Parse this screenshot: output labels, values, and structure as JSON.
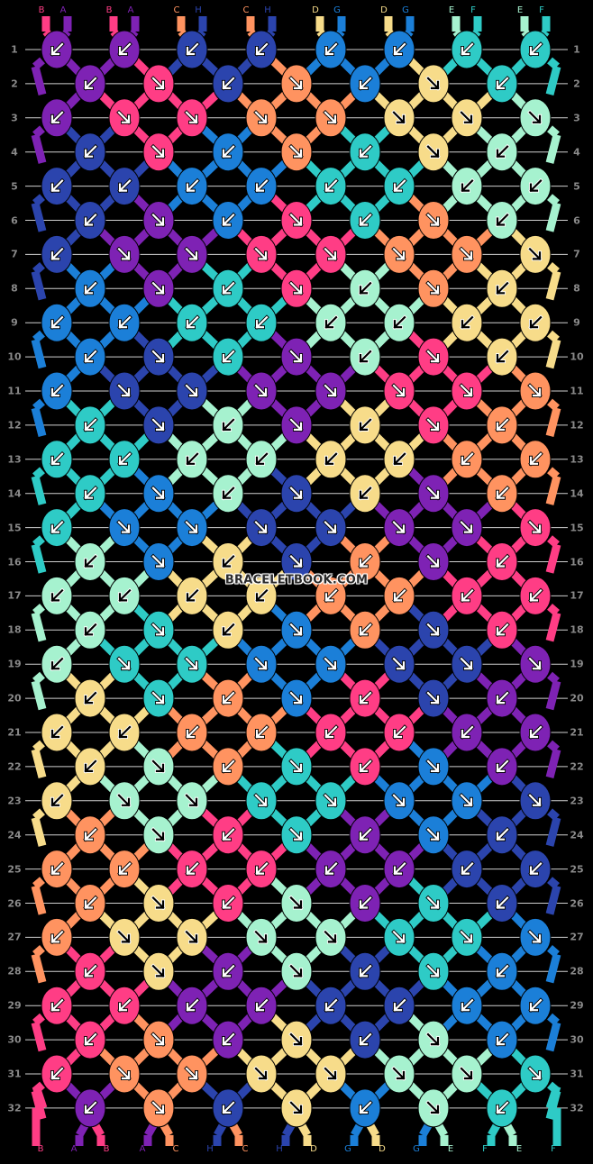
{
  "site": {
    "watermark": "BRACELETBOOK.COM"
  },
  "colors": {
    "A": "#7e22b4",
    "B": "#ff3d85",
    "C": "#ff9360",
    "D": "#f7dc8a",
    "E": "#a6f2cf",
    "F": "#2ecbc6",
    "G": "#1b7fd8",
    "H": "#2b44ad"
  },
  "strings_top": [
    "B",
    "A",
    "B",
    "A",
    "C",
    "H",
    "C",
    "H",
    "D",
    "G",
    "D",
    "G",
    "E",
    "F",
    "E",
    "F"
  ],
  "strings_bottom": [
    "B",
    "A",
    "B",
    "A",
    "C",
    "H",
    "C",
    "H",
    "D",
    "G",
    "D",
    "G",
    "E",
    "F",
    "E",
    "F"
  ],
  "row_count": 32,
  "rows": [
    [
      "AL",
      "AL",
      "HL",
      "HL",
      "GL",
      "GL",
      "FL",
      "FL"
    ],
    [
      "AL",
      "BR",
      "HL",
      "CR",
      "GL",
      "DR",
      "FL"
    ],
    [
      "AL",
      "BR",
      "BR",
      "CR",
      "CR",
      "DR",
      "DR",
      "ER"
    ],
    [
      "HL",
      "BR",
      "GL",
      "CR",
      "FL",
      "DR",
      "EL"
    ],
    [
      "HL",
      "HL",
      "GL",
      "GL",
      "FL",
      "FL",
      "EL",
      "EL"
    ],
    [
      "HL",
      "AR",
      "GL",
      "BR",
      "FL",
      "CR",
      "EL"
    ],
    [
      "HL",
      "AR",
      "AR",
      "BR",
      "BR",
      "CR",
      "CR",
      "DR"
    ],
    [
      "GL",
      "AR",
      "FL",
      "BR",
      "EL",
      "CR",
      "DL"
    ],
    [
      "GL",
      "GL",
      "FL",
      "FL",
      "EL",
      "EL",
      "DL",
      "DL"
    ],
    [
      "GL",
      "HR",
      "FL",
      "AR",
      "EL",
      "BR",
      "DL"
    ],
    [
      "GL",
      "HR",
      "HR",
      "AR",
      "AR",
      "BR",
      "BR",
      "CR"
    ],
    [
      "FL",
      "HR",
      "EL",
      "AR",
      "DL",
      "BR",
      "CL"
    ],
    [
      "FL",
      "FL",
      "EL",
      "EL",
      "DL",
      "DL",
      "CL",
      "CL"
    ],
    [
      "FL",
      "GR",
      "EL",
      "HR",
      "DL",
      "AR",
      "CL"
    ],
    [
      "FL",
      "GR",
      "GR",
      "HR",
      "HR",
      "AR",
      "AR",
      "BR"
    ],
    [
      "EL",
      "GR",
      "DL",
      "HR",
      "CL",
      "AR",
      "BL"
    ],
    [
      "EL",
      "EL",
      "DL",
      "DL",
      "CL",
      "CL",
      "BL",
      "BL"
    ],
    [
      "EL",
      "FR",
      "DL",
      "GR",
      "CL",
      "HR",
      "BL"
    ],
    [
      "EL",
      "FR",
      "FR",
      "GR",
      "GR",
      "HR",
      "HR",
      "AR"
    ],
    [
      "DL",
      "FR",
      "CL",
      "GR",
      "BL",
      "HR",
      "AL"
    ],
    [
      "DL",
      "DL",
      "CL",
      "CL",
      "BL",
      "BL",
      "AL",
      "AL"
    ],
    [
      "DL",
      "ER",
      "CL",
      "FR",
      "BL",
      "GR",
      "AL"
    ],
    [
      "DL",
      "ER",
      "ER",
      "FR",
      "FR",
      "GR",
      "GR",
      "HR"
    ],
    [
      "CL",
      "ER",
      "BL",
      "FR",
      "AL",
      "GR",
      "HL"
    ],
    [
      "CL",
      "CL",
      "BL",
      "BL",
      "AL",
      "AL",
      "HL",
      "HL"
    ],
    [
      "CL",
      "DR",
      "BL",
      "ER",
      "AL",
      "FR",
      "HL"
    ],
    [
      "CL",
      "DR",
      "DR",
      "ER",
      "ER",
      "FR",
      "FR",
      "GR"
    ],
    [
      "BL",
      "DR",
      "AL",
      "ER",
      "HL",
      "FR",
      "GL"
    ],
    [
      "BL",
      "BL",
      "AL",
      "AL",
      "HL",
      "HL",
      "GL",
      "GL"
    ],
    [
      "BL",
      "CR",
      "AL",
      "DR",
      "HL",
      "ER",
      "GL"
    ],
    [
      "BL",
      "CR",
      "CR",
      "DR",
      "DR",
      "ER",
      "ER",
      "FR"
    ],
    [
      "AL",
      "CR",
      "HL",
      "DR",
      "GL",
      "ER",
      "FL"
    ]
  ],
  "legend": {
    "L": "forward-knot-left-arrow",
    "R": "forward-knot-right-arrow"
  }
}
